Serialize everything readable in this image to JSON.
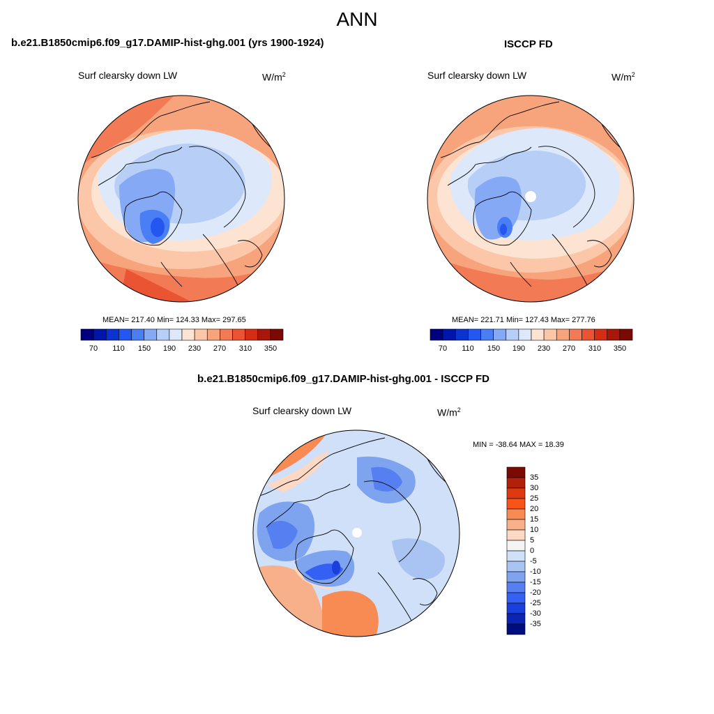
{
  "main_title": "ANN",
  "panels": [
    {
      "case_title": "b.e21.B1850cmip6.f09_g17.DAMIP-hist-ghg.001 (yrs 1900-1924)",
      "variable": "Surf clearsky down LW",
      "units_base": "W/m",
      "units_exp": "2",
      "stats_text": "MEAN= 217.40  Min= 124.33  Max= 297.65",
      "colorbar_labels": [
        "70",
        "110",
        "150",
        "190",
        "230",
        "270",
        "310",
        "350"
      ]
    },
    {
      "case_title": "ISCCP FD",
      "variable": "Surf clearsky down LW",
      "units_base": "W/m",
      "units_exp": "2",
      "stats_text": "MEAN= 221.71  Min= 127.43  Max= 277.76",
      "colorbar_labels": [
        "70",
        "110",
        "150",
        "190",
        "230",
        "270",
        "310",
        "350"
      ]
    }
  ],
  "diff_panel": {
    "case_title": "b.e21.B1850cmip6.f09_g17.DAMIP-hist-ghg.001 - ISCCP FD",
    "variable": "Surf clearsky down LW",
    "units_base": "W/m",
    "units_exp": "2",
    "minmax_text": "MIN = -38.64 MAX =  18.39",
    "colorbar_labels": [
      "35",
      "30",
      "25",
      "20",
      "15",
      "10",
      "5",
      "0",
      "-5",
      "-10",
      "-15",
      "-20",
      "-25",
      "-30",
      "-35"
    ]
  },
  "colors": {
    "abs_scale": [
      "#00007f",
      "#0015aa",
      "#0a33d0",
      "#2457f0",
      "#4a7ef5",
      "#85a9f5",
      "#b7cef7",
      "#dde9fb",
      "#fde3d2",
      "#fbc7a8",
      "#f7a47c",
      "#f27b55",
      "#ea5432",
      "#d42d14",
      "#a81808",
      "#7a0a02"
    ],
    "diff_scale": [
      "#7a0a02",
      "#b3200a",
      "#e0380f",
      "#f8541a",
      "#f88a54",
      "#f8b08a",
      "#fdd8c3",
      "#f4f4f4",
      "#cfe0f8",
      "#a9c3f2",
      "#7ea3ef",
      "#567ff1",
      "#3560f4",
      "#1a3fdd",
      "#0a25b5",
      "#000d7e"
    ]
  }
}
